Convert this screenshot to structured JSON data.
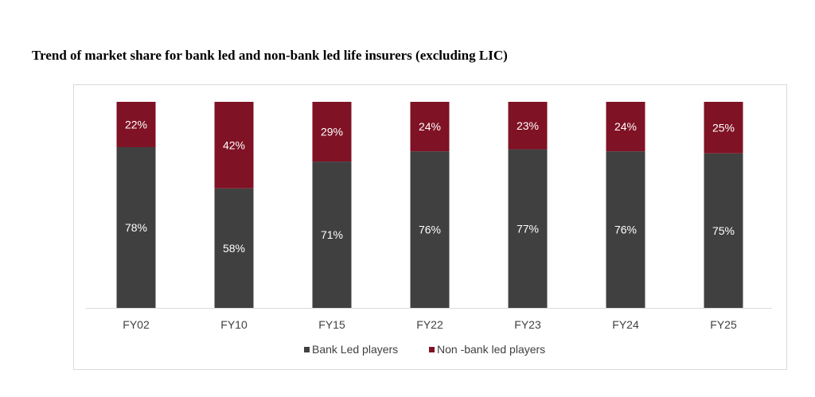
{
  "title": "Trend of market share for bank led and non-bank led life insurers (excluding LIC)",
  "chart_data": {
    "type": "bar",
    "stacked": true,
    "percent_stacked": true,
    "title": "Trend of market share for bank led and non-bank led life insurers (excluding LIC)",
    "xlabel": "",
    "ylabel": "",
    "ylim": [
      0,
      100
    ],
    "grid": false,
    "legend_position": "bottom",
    "categories": [
      "FY02",
      "FY10",
      "FY15",
      "FY22",
      "FY23",
      "FY24",
      "FY25"
    ],
    "series": [
      {
        "name": "Bank Led players",
        "values": [
          78,
          58,
          71,
          76,
          77,
          76,
          75
        ],
        "labels": [
          "78%",
          "58%",
          "71%",
          "76%",
          "77%",
          "76%",
          "75%"
        ],
        "color": "#404040"
      },
      {
        "name": "Non -bank led players",
        "values": [
          22,
          42,
          29,
          24,
          23,
          24,
          25
        ],
        "labels": [
          "22%",
          "42%",
          "29%",
          "24%",
          "23%",
          "24%",
          "25%"
        ],
        "color": "#7f1224"
      }
    ]
  }
}
